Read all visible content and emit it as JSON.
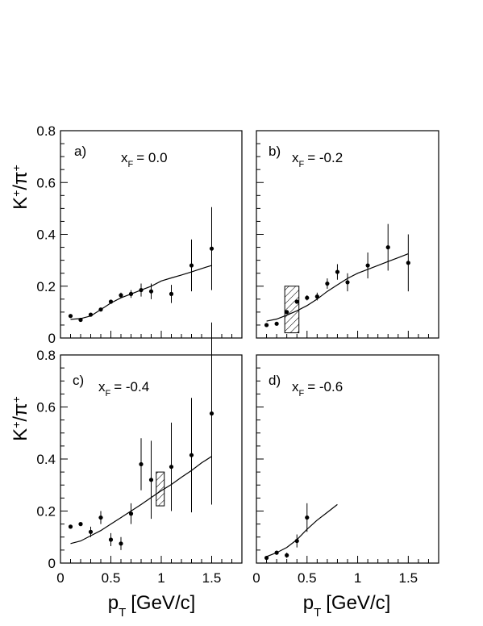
{
  "chart_data": [
    {
      "type": "scatter",
      "panel_label": "a)",
      "xf_label": "x",
      "xf_sub": "F",
      "xf_value": "= 0.0",
      "ylabel_main": "K",
      "ylabel_sup1": "+",
      "ylabel_sep": "/π",
      "ylabel_sup2": "+",
      "xlabel_main": "",
      "xlabel_sub": "",
      "xlabel_unit": "",
      "xlim": [
        0,
        1.8
      ],
      "ylim": [
        0,
        0.8
      ],
      "x_ticks": [],
      "y_ticks": [
        "0",
        "0.2",
        "0.4",
        "0.6",
        "0.8"
      ],
      "points": [
        {
          "x": 0.1,
          "y": 0.085,
          "err": 0.0
        },
        {
          "x": 0.2,
          "y": 0.07,
          "err": 0.0
        },
        {
          "x": 0.3,
          "y": 0.09,
          "err": 0.0
        },
        {
          "x": 0.4,
          "y": 0.11,
          "err": 0.0
        },
        {
          "x": 0.5,
          "y": 0.14,
          "err": 0.0
        },
        {
          "x": 0.6,
          "y": 0.165,
          "err": 0.01
        },
        {
          "x": 0.7,
          "y": 0.17,
          "err": 0.015
        },
        {
          "x": 0.8,
          "y": 0.185,
          "err": 0.025
        },
        {
          "x": 0.9,
          "y": 0.18,
          "err": 0.03
        },
        {
          "x": 1.1,
          "y": 0.17,
          "err": 0.035
        },
        {
          "x": 1.3,
          "y": 0.28,
          "err": 0.1
        },
        {
          "x": 1.5,
          "y": 0.345,
          "err": 0.16
        }
      ],
      "curve": [
        [
          0.1,
          0.072
        ],
        [
          0.2,
          0.075
        ],
        [
          0.3,
          0.085
        ],
        [
          0.4,
          0.11
        ],
        [
          0.5,
          0.135
        ],
        [
          0.6,
          0.155
        ],
        [
          0.7,
          0.17
        ],
        [
          0.8,
          0.185
        ],
        [
          0.9,
          0.2
        ],
        [
          1.0,
          0.22
        ],
        [
          1.1,
          0.232
        ],
        [
          1.2,
          0.243
        ],
        [
          1.3,
          0.255
        ],
        [
          1.4,
          0.268
        ],
        [
          1.5,
          0.28
        ]
      ],
      "band": null
    },
    {
      "type": "scatter",
      "panel_label": "b)",
      "xf_label": "x",
      "xf_sub": "F",
      "xf_value": "= -0.2",
      "ylabel_main": "",
      "xlabel_main": "",
      "xlim": [
        0,
        1.8
      ],
      "ylim": [
        0,
        0.8
      ],
      "x_ticks": [],
      "y_ticks": [],
      "points": [
        {
          "x": 0.1,
          "y": 0.05,
          "err": 0.0
        },
        {
          "x": 0.2,
          "y": 0.055,
          "err": 0.0
        },
        {
          "x": 0.3,
          "y": 0.1,
          "err": 0.0
        },
        {
          "x": 0.4,
          "y": 0.14,
          "err": 0.0
        },
        {
          "x": 0.5,
          "y": 0.155,
          "err": 0.01
        },
        {
          "x": 0.6,
          "y": 0.16,
          "err": 0.015
        },
        {
          "x": 0.7,
          "y": 0.21,
          "err": 0.02
        },
        {
          "x": 0.8,
          "y": 0.255,
          "err": 0.03
        },
        {
          "x": 0.9,
          "y": 0.215,
          "err": 0.035
        },
        {
          "x": 1.1,
          "y": 0.28,
          "err": 0.05
        },
        {
          "x": 1.3,
          "y": 0.35,
          "err": 0.09
        },
        {
          "x": 1.5,
          "y": 0.29,
          "err": 0.11
        }
      ],
      "curve": [
        [
          0.1,
          0.065
        ],
        [
          0.2,
          0.073
        ],
        [
          0.3,
          0.088
        ],
        [
          0.4,
          0.105
        ],
        [
          0.5,
          0.125
        ],
        [
          0.6,
          0.15
        ],
        [
          0.7,
          0.18
        ],
        [
          0.8,
          0.205
        ],
        [
          0.9,
          0.23
        ],
        [
          1.0,
          0.25
        ],
        [
          1.1,
          0.265
        ],
        [
          1.2,
          0.28
        ],
        [
          1.3,
          0.295
        ],
        [
          1.4,
          0.31
        ],
        [
          1.5,
          0.325
        ]
      ],
      "band": {
        "x0": 0.28,
        "x1": 0.42,
        "y0": 0.02,
        "y1": 0.2
      }
    },
    {
      "type": "scatter",
      "panel_label": "c)",
      "xf_label": "x",
      "xf_sub": "F",
      "xf_value": "= -0.4",
      "ylabel_main": "K",
      "ylabel_sup1": "+",
      "ylabel_sep": "/π",
      "ylabel_sup2": "+",
      "xlabel_main": "p",
      "xlabel_sub": "T",
      "xlabel_unit": "[GeV/c]",
      "xlim": [
        0,
        1.8
      ],
      "ylim": [
        0,
        0.8
      ],
      "x_ticks": [
        "0",
        "0.5",
        "1",
        "1.5"
      ],
      "y_ticks": [
        "0",
        "0.2",
        "0.4",
        "0.6",
        "0.8"
      ],
      "points": [
        {
          "x": 0.1,
          "y": 0.14,
          "err": 0.0
        },
        {
          "x": 0.2,
          "y": 0.15,
          "err": 0.0
        },
        {
          "x": 0.3,
          "y": 0.12,
          "err": 0.02
        },
        {
          "x": 0.4,
          "y": 0.175,
          "err": 0.025
        },
        {
          "x": 0.5,
          "y": 0.09,
          "err": 0.025
        },
        {
          "x": 0.6,
          "y": 0.075,
          "err": 0.025
        },
        {
          "x": 0.7,
          "y": 0.19,
          "err": 0.04
        },
        {
          "x": 0.8,
          "y": 0.38,
          "err": 0.1
        },
        {
          "x": 0.9,
          "y": 0.32,
          "err": 0.15
        },
        {
          "x": 1.1,
          "y": 0.37,
          "err": 0.17
        },
        {
          "x": 1.3,
          "y": 0.415,
          "err": 0.22
        },
        {
          "x": 1.5,
          "y": 0.575,
          "err": 0.35
        }
      ],
      "curve": [
        [
          0.1,
          0.075
        ],
        [
          0.2,
          0.085
        ],
        [
          0.3,
          0.105
        ],
        [
          0.4,
          0.125
        ],
        [
          0.5,
          0.15
        ],
        [
          0.6,
          0.175
        ],
        [
          0.7,
          0.2
        ],
        [
          0.8,
          0.225
        ],
        [
          0.9,
          0.252
        ],
        [
          1.0,
          0.278
        ],
        [
          1.1,
          0.302
        ],
        [
          1.2,
          0.33
        ],
        [
          1.3,
          0.356
        ],
        [
          1.4,
          0.385
        ],
        [
          1.5,
          0.41
        ]
      ],
      "band": {
        "x0": 0.95,
        "x1": 1.03,
        "y0": 0.22,
        "y1": 0.35
      }
    },
    {
      "type": "scatter",
      "panel_label": "d)",
      "xf_label": "x",
      "xf_sub": "F",
      "xf_value": "= -0.6",
      "ylabel_main": "",
      "xlabel_main": "p",
      "xlabel_sub": "T",
      "xlabel_unit": "[GeV/c]",
      "xlim": [
        0,
        1.8
      ],
      "ylim": [
        0,
        0.8
      ],
      "x_ticks": [
        "0",
        "0.5",
        "1",
        "1.5"
      ],
      "y_ticks": [],
      "points": [
        {
          "x": 0.1,
          "y": 0.02,
          "err": 0.0
        },
        {
          "x": 0.2,
          "y": 0.04,
          "err": 0.0
        },
        {
          "x": 0.3,
          "y": 0.03,
          "err": 0.01
        },
        {
          "x": 0.4,
          "y": 0.085,
          "err": 0.025
        },
        {
          "x": 0.5,
          "y": 0.175,
          "err": 0.055
        }
      ],
      "curve": [
        [
          0.1,
          0.025
        ],
        [
          0.2,
          0.04
        ],
        [
          0.3,
          0.06
        ],
        [
          0.4,
          0.09
        ],
        [
          0.5,
          0.13
        ],
        [
          0.6,
          0.165
        ],
        [
          0.7,
          0.195
        ],
        [
          0.8,
          0.225
        ]
      ],
      "band": null
    }
  ]
}
